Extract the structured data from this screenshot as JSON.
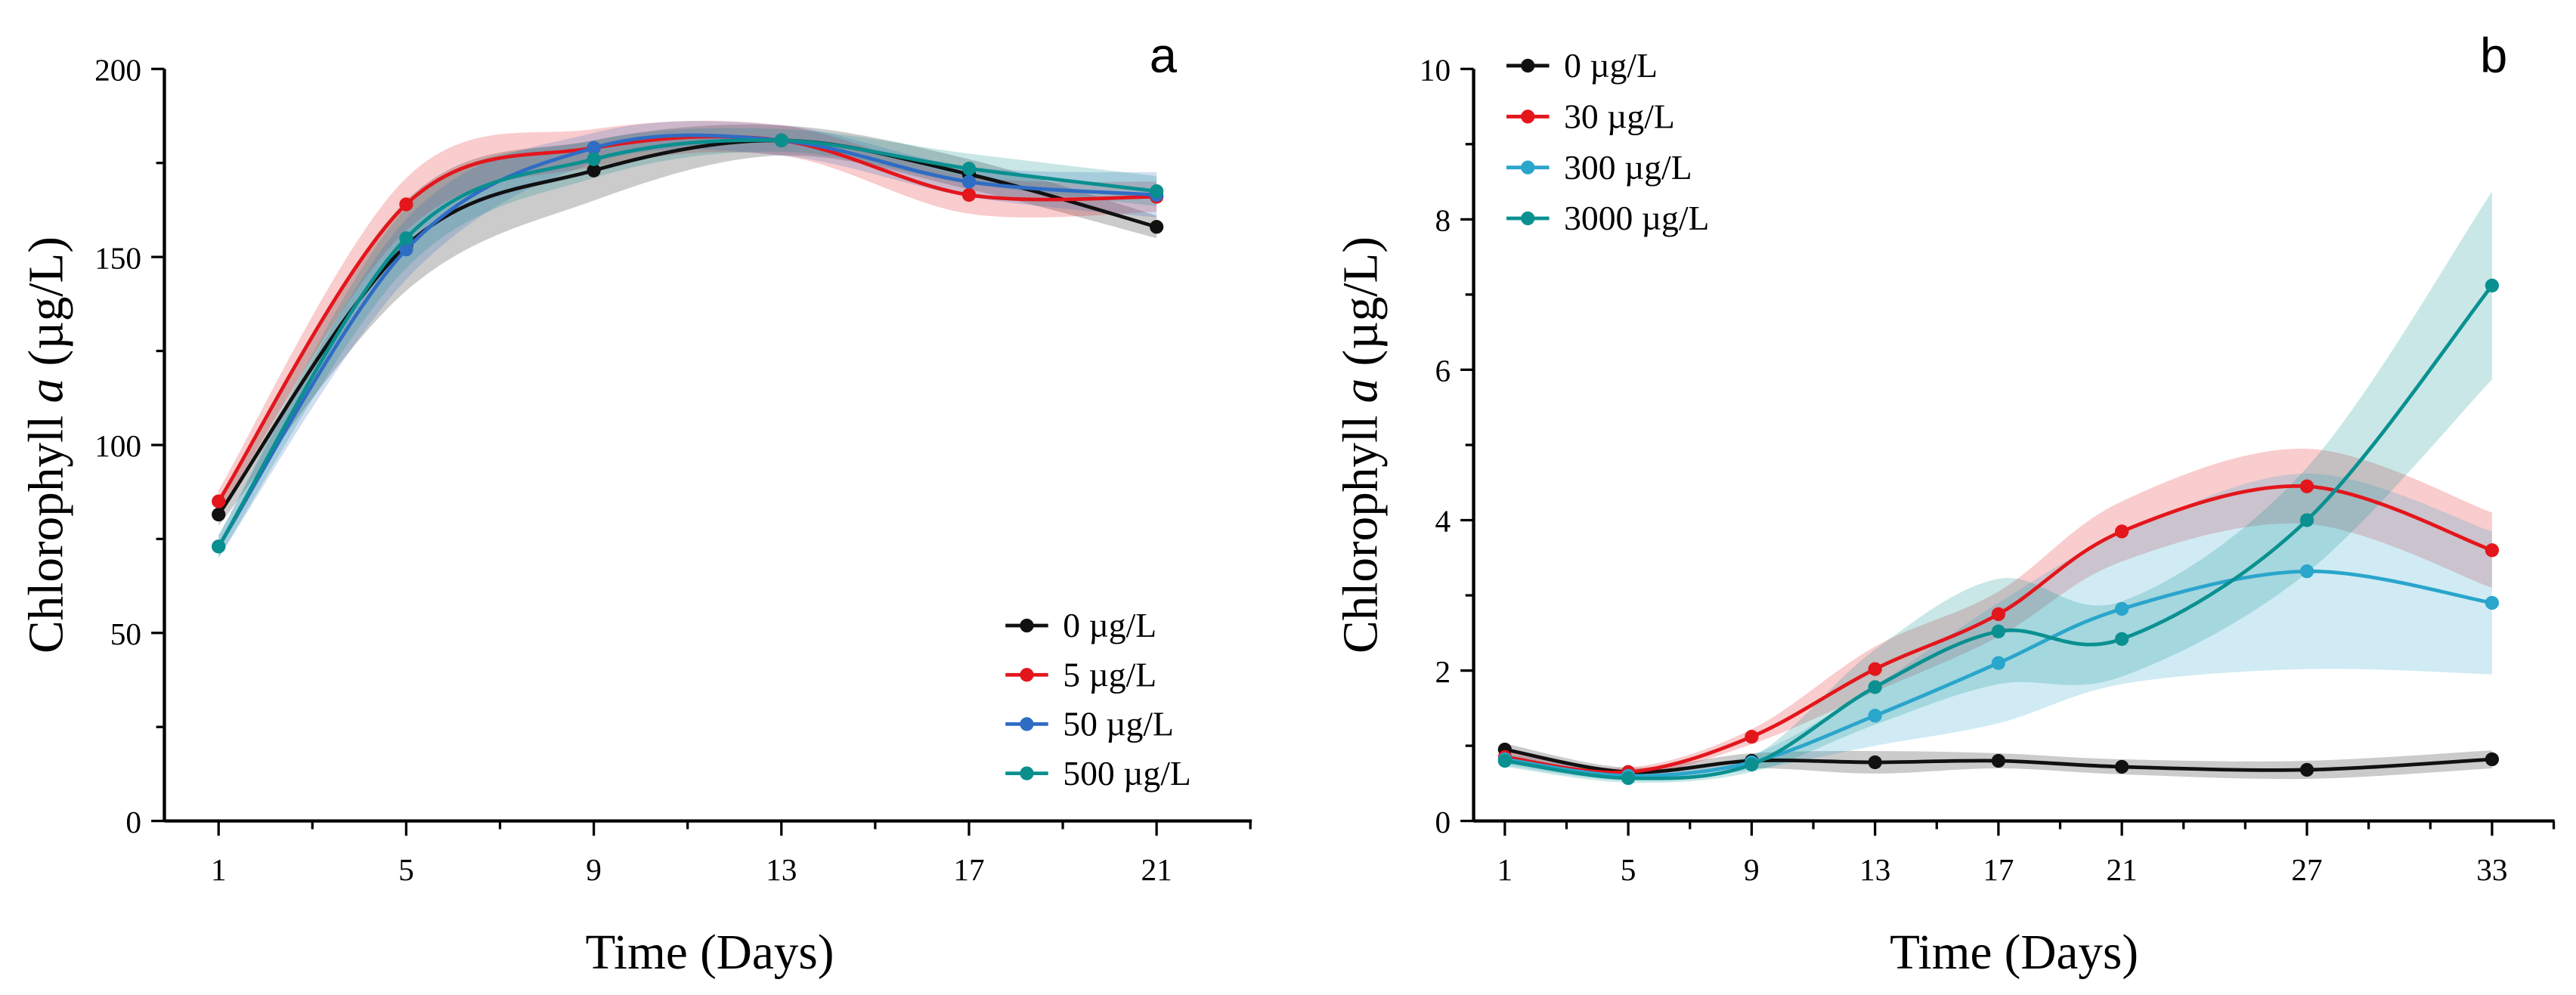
{
  "chart_data": [
    {
      "type": "line",
      "panel_label": "a",
      "xlabel": "Time (Days)",
      "ylabel_prefix": "Chlorophyll ",
      "ylabel_italic": "a",
      "ylabel_suffix": " (µg/L)",
      "x": [
        1,
        5,
        9,
        13,
        17,
        21
      ],
      "xticks": [
        "1",
        "5",
        "9",
        "13",
        "17",
        "21"
      ],
      "xlim": [
        0,
        23
      ],
      "ylim": [
        0,
        200
      ],
      "yticks": [
        "0",
        "50",
        "100",
        "150",
        "200"
      ],
      "legend_position": "bottom-right",
      "series": [
        {
          "name": "0 µg/L",
          "color": "#111111",
          "values": [
            81.5,
            153,
            173,
            181,
            172,
            158
          ],
          "error": [
            3,
            12,
            8,
            4,
            4,
            3
          ]
        },
        {
          "name": "5 µg/L",
          "color": "#e3161c",
          "values": [
            85,
            164,
            179,
            181,
            166.5,
            166
          ],
          "error": [
            3,
            7,
            5,
            4,
            5,
            4
          ]
        },
        {
          "name": "50 µg/L",
          "color": "#2f6cc4",
          "values": [
            73,
            152,
            179,
            181,
            170,
            166.5
          ],
          "error": [
            3,
            8,
            4,
            4,
            4,
            6
          ]
        },
        {
          "name": "500 µg/L",
          "color": "#0a8f8f",
          "values": [
            73,
            155,
            176,
            181,
            173.5,
            167.5
          ],
          "error": [
            3,
            8,
            5,
            3,
            4,
            4
          ]
        }
      ]
    },
    {
      "type": "line",
      "panel_label": "b",
      "xlabel": "Time (Days)",
      "ylabel_prefix": "Chlorophyll ",
      "ylabel_italic": "a",
      "ylabel_suffix": " (µg/L)",
      "x": [
        1,
        5,
        9,
        13,
        17,
        21,
        27,
        33
      ],
      "xticks": [
        "1",
        "5",
        "9",
        "13",
        "17",
        "21",
        "27",
        "33"
      ],
      "xlim": [
        0,
        35
      ],
      "ylim": [
        0,
        10
      ],
      "yticks": [
        "0",
        "2",
        "4",
        "6",
        "8",
        "10"
      ],
      "legend_position": "top-left",
      "series": [
        {
          "name": "0 µg/L",
          "color": "#111111",
          "values": [
            0.95,
            0.65,
            0.8,
            0.78,
            0.8,
            0.72,
            0.68,
            0.82
          ],
          "error": [
            0.08,
            0.06,
            0.1,
            0.15,
            0.1,
            0.1,
            0.12,
            0.12
          ]
        },
        {
          "name": "30 µg/L",
          "color": "#e3161c",
          "values": [
            0.85,
            0.65,
            1.12,
            2.02,
            2.75,
            3.85,
            4.45,
            3.6
          ],
          "error": [
            0.08,
            0.06,
            0.1,
            0.3,
            0.3,
            0.4,
            0.5,
            0.5
          ]
        },
        {
          "name": "300 µg/L",
          "color": "#2aa5cc",
          "values": [
            0.82,
            0.6,
            0.78,
            1.4,
            2.1,
            2.82,
            3.32,
            2.9
          ],
          "error": [
            0.08,
            0.06,
            0.1,
            0.4,
            0.8,
            1.0,
            1.3,
            0.95
          ]
        },
        {
          "name": "3000 µg/L",
          "color": "#0a9090",
          "values": [
            0.8,
            0.57,
            0.75,
            1.78,
            2.52,
            2.42,
            4.0,
            7.12
          ],
          "error": [
            0.08,
            0.06,
            0.1,
            0.5,
            0.7,
            0.5,
            0.7,
            1.25
          ]
        }
      ]
    }
  ]
}
